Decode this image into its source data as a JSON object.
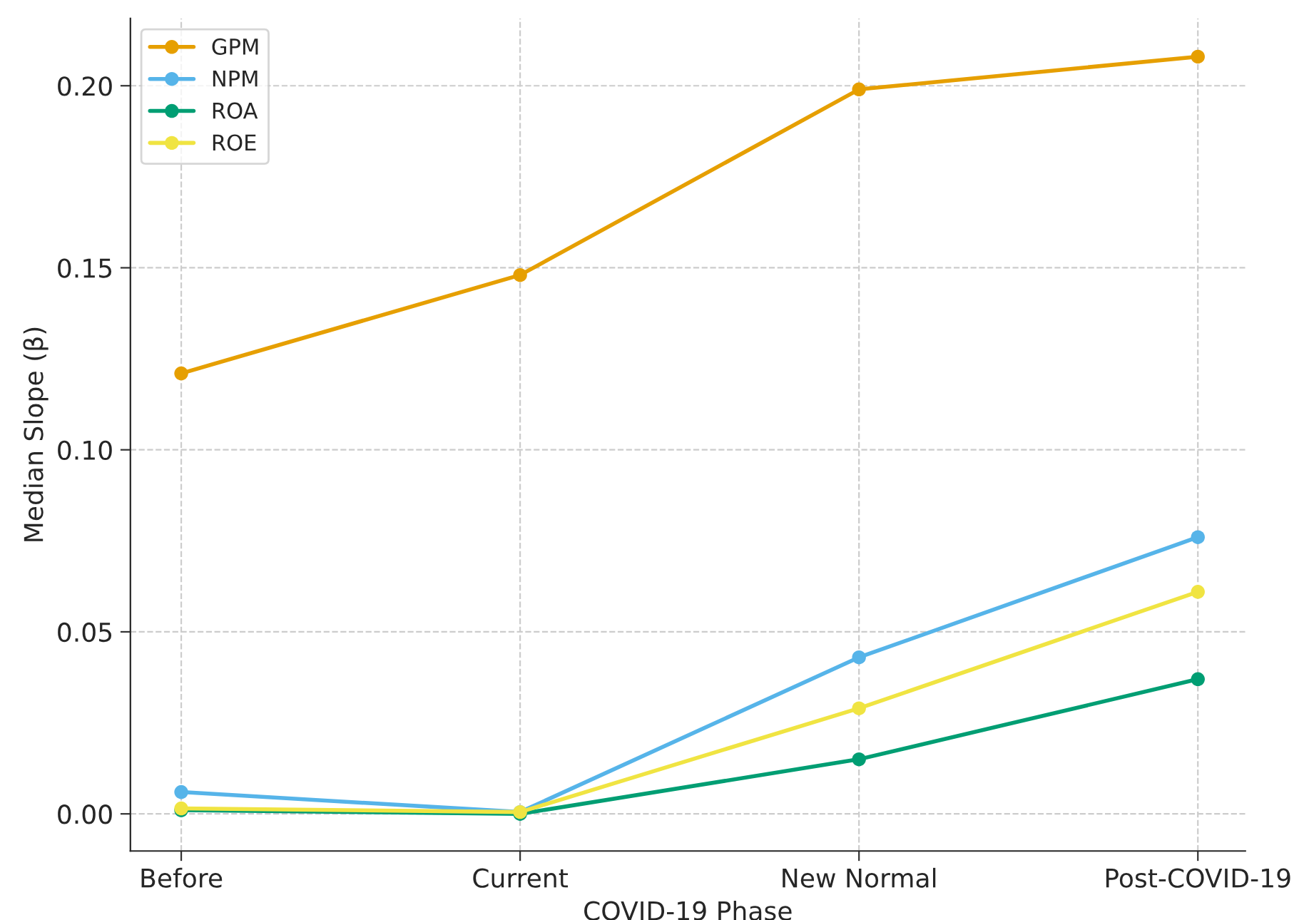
{
  "chart_data": {
    "type": "line",
    "xlabel": "COVID-19 Phase",
    "ylabel": "Median Slope (β)",
    "categories": [
      "Before",
      "Current",
      "New Normal",
      "Post-COVID-19"
    ],
    "series": [
      {
        "name": "GPM",
        "color": "#e69f00",
        "values": [
          0.121,
          0.148,
          0.199,
          0.208
        ]
      },
      {
        "name": "NPM",
        "color": "#56b4e9",
        "values": [
          0.006,
          0.0005,
          0.043,
          0.076
        ]
      },
      {
        "name": "ROA",
        "color": "#009e73",
        "values": [
          0.001,
          0.0,
          0.015,
          0.037
        ]
      },
      {
        "name": "ROE",
        "color": "#f0e442",
        "values": [
          0.0015,
          0.0005,
          0.029,
          0.061
        ]
      }
    ],
    "ylim": [
      -0.0102,
      0.2185
    ],
    "yticks": [
      {
        "value": 0,
        "label": "0.00"
      },
      {
        "value": 0.05,
        "label": "0.05"
      },
      {
        "value": 0.1,
        "label": "0.10"
      },
      {
        "value": 0.15,
        "label": "0.15"
      },
      {
        "value": 0.2,
        "label": "0.20"
      }
    ],
    "grid": true,
    "legend": "top left",
    "marker": "circle",
    "line_style": "solid"
  }
}
